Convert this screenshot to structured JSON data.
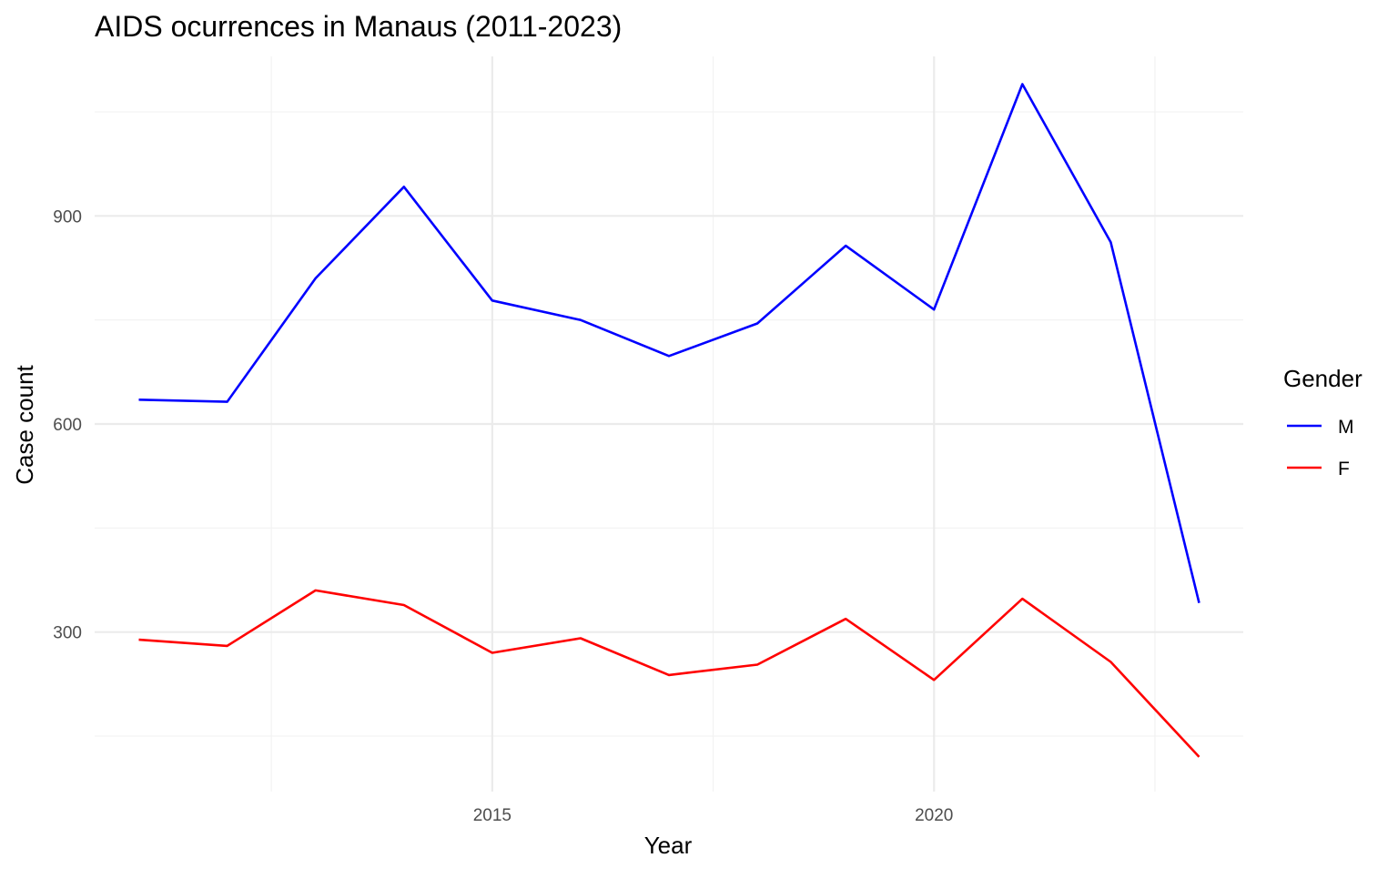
{
  "chart_data": {
    "type": "line",
    "title": "AIDS ocurrences in Manaus (2011-2023)",
    "xlabel": "Year",
    "ylabel": "Case count",
    "x": [
      2011,
      2012,
      2013,
      2014,
      2015,
      2016,
      2017,
      2018,
      2019,
      2020,
      2021,
      2022,
      2023
    ],
    "xlim": [
      2010.5,
      2023.5
    ],
    "ylim": [
      70,
      1130
    ],
    "x_ticks": [
      2015,
      2020
    ],
    "x_minor_ticks": [
      2012.5,
      2017.5,
      2022.5
    ],
    "y_ticks": [
      300,
      600,
      900
    ],
    "y_minor_ticks": [
      150,
      450,
      750,
      1050
    ],
    "grid": true,
    "legend": {
      "title": "Gender",
      "position": "right"
    },
    "series": [
      {
        "name": "M",
        "color": "#0000ff",
        "values": [
          635,
          632,
          810,
          942,
          778,
          750,
          698,
          745,
          857,
          765,
          1090,
          862,
          342
        ]
      },
      {
        "name": "F",
        "color": "#ff0000",
        "values": [
          289,
          280,
          360,
          339,
          270,
          291,
          238,
          253,
          319,
          231,
          348,
          257,
          120
        ]
      }
    ]
  }
}
